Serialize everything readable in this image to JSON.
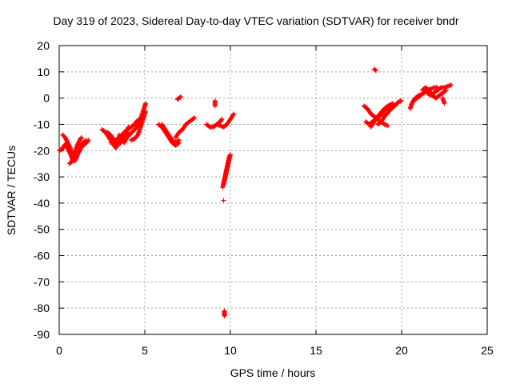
{
  "chart_data": {
    "type": "scatter",
    "title": "Day 319 of 2023, Sidereal Day-to-day VTEC variation (SDTVAR) for receiver bndr",
    "xlabel": "GPS time / hours",
    "ylabel": "SDTVAR / TECUs",
    "xlim": [
      0,
      25
    ],
    "ylim": [
      -90,
      20
    ],
    "xticks": [
      0,
      5,
      10,
      15,
      20,
      25
    ],
    "yticks": [
      20,
      10,
      0,
      -10,
      -20,
      -30,
      -40,
      -50,
      -60,
      -70,
      -80,
      -90
    ],
    "grid": true,
    "marker": "+",
    "marker_color": "#ff0000",
    "segments": [
      [
        [
          0.0,
          -20
        ],
        [
          0.15,
          -19.5
        ],
        [
          0.3,
          -18
        ],
        [
          0.45,
          -17
        ]
      ],
      [
        [
          0.2,
          -14
        ],
        [
          0.35,
          -15
        ],
        [
          0.5,
          -17
        ],
        [
          0.65,
          -19
        ],
        [
          0.8,
          -22
        ],
        [
          0.9,
          -24
        ],
        [
          1.0,
          -23
        ],
        [
          1.1,
          -21
        ],
        [
          1.2,
          -20
        ],
        [
          1.3,
          -18
        ],
        [
          1.4,
          -17
        ],
        [
          1.55,
          -16
        ]
      ],
      [
        [
          0.4,
          -18
        ],
        [
          0.55,
          -20
        ],
        [
          0.7,
          -22
        ],
        [
          0.8,
          -24
        ],
        [
          0.95,
          -22
        ],
        [
          1.1,
          -21
        ],
        [
          1.25,
          -19
        ],
        [
          1.4,
          -18
        ],
        [
          1.6,
          -17
        ],
        [
          1.7,
          -16
        ]
      ],
      [
        [
          0.6,
          -25
        ],
        [
          0.75,
          -24
        ],
        [
          0.9,
          -21
        ],
        [
          1.05,
          -18
        ],
        [
          1.2,
          -16
        ],
        [
          1.3,
          -15
        ]
      ],
      [
        [
          2.5,
          -12
        ],
        [
          2.7,
          -13
        ],
        [
          2.9,
          -15
        ],
        [
          3.1,
          -17
        ],
        [
          3.3,
          -19
        ],
        [
          3.5,
          -17
        ],
        [
          3.7,
          -15
        ],
        [
          3.9,
          -13
        ],
        [
          4.05,
          -11
        ]
      ],
      [
        [
          2.8,
          -13
        ],
        [
          3.0,
          -14
        ],
        [
          3.2,
          -16
        ],
        [
          3.4,
          -18
        ],
        [
          3.6,
          -17
        ],
        [
          3.8,
          -15
        ],
        [
          4.0,
          -13
        ]
      ],
      [
        [
          3.0,
          -17
        ],
        [
          3.2,
          -16.5
        ],
        [
          3.4,
          -15.5
        ],
        [
          3.6,
          -14.5
        ],
        [
          3.8,
          -13
        ],
        [
          4.0,
          -12
        ],
        [
          4.2,
          -11
        ],
        [
          4.4,
          -10
        ],
        [
          4.5,
          -9
        ],
        [
          4.7,
          -8
        ]
      ],
      [
        [
          3.5,
          -14
        ],
        [
          3.65,
          -16
        ],
        [
          3.8,
          -17
        ],
        [
          3.95,
          -15
        ],
        [
          4.1,
          -14
        ],
        [
          4.25,
          -13
        ],
        [
          4.4,
          -12
        ],
        [
          4.55,
          -11
        ],
        [
          4.7,
          -9
        ],
        [
          4.85,
          -6
        ],
        [
          5.0,
          -3
        ],
        [
          5.05,
          -2
        ]
      ],
      [
        [
          4.2,
          -16
        ],
        [
          4.4,
          -15.5
        ],
        [
          4.6,
          -14
        ],
        [
          4.75,
          -11
        ],
        [
          4.85,
          -9
        ],
        [
          4.95,
          -7
        ],
        [
          5.05,
          -5
        ]
      ],
      [
        [
          5.8,
          -10
        ],
        [
          6.0,
          -11
        ],
        [
          6.2,
          -13
        ],
        [
          6.4,
          -15
        ],
        [
          6.6,
          -17
        ],
        [
          6.8,
          -18
        ],
        [
          7.0,
          -17
        ]
      ],
      [
        [
          6.0,
          -10
        ],
        [
          6.2,
          -12
        ],
        [
          6.4,
          -14
        ],
        [
          6.6,
          -16
        ],
        [
          6.8,
          -17
        ],
        [
          7.0,
          -16
        ]
      ],
      [
        [
          6.8,
          -15
        ],
        [
          7.0,
          -13
        ],
        [
          7.2,
          -12
        ],
        [
          7.4,
          -10
        ],
        [
          7.6,
          -9
        ],
        [
          7.8,
          -8
        ],
        [
          7.9,
          -7.5
        ]
      ],
      [
        [
          6.9,
          -0.5
        ],
        [
          7.0,
          0
        ],
        [
          7.1,
          0.5
        ]
      ],
      [
        [
          8.6,
          -10
        ],
        [
          8.8,
          -11
        ],
        [
          9.0,
          -11
        ],
        [
          9.2,
          -10
        ],
        [
          9.4,
          -9
        ],
        [
          9.5,
          -8
        ]
      ],
      [
        [
          9.1,
          -1
        ],
        [
          9.1,
          -3
        ]
      ],
      [
        [
          9.2,
          -10
        ],
        [
          9.4,
          -10.5
        ],
        [
          9.6,
          -11
        ],
        [
          9.8,
          -10
        ],
        [
          10.0,
          -8
        ],
        [
          10.2,
          -6
        ]
      ],
      [
        [
          9.55,
          -34
        ],
        [
          9.65,
          -31
        ],
        [
          9.75,
          -28
        ],
        [
          9.85,
          -25
        ],
        [
          9.95,
          -22
        ]
      ],
      [
        [
          9.6,
          -33
        ],
        [
          9.7,
          -30
        ],
        [
          9.8,
          -27
        ],
        [
          9.9,
          -24
        ],
        [
          10.0,
          -21.5
        ]
      ],
      [
        [
          9.6,
          -39
        ]
      ],
      [
        [
          9.65,
          -81
        ],
        [
          9.65,
          -82
        ],
        [
          9.65,
          -83
        ]
      ],
      [
        [
          17.8,
          -3
        ],
        [
          18.0,
          -4
        ],
        [
          18.2,
          -6
        ],
        [
          18.4,
          -7
        ],
        [
          18.6,
          -8
        ],
        [
          18.8,
          -9
        ],
        [
          19.0,
          -10
        ],
        [
          19.2,
          -10.5
        ]
      ],
      [
        [
          17.9,
          -9
        ],
        [
          18.1,
          -10
        ],
        [
          18.3,
          -9
        ],
        [
          18.5,
          -8
        ],
        [
          18.7,
          -7
        ],
        [
          18.9,
          -5.5
        ],
        [
          19.1,
          -4
        ],
        [
          19.3,
          -3
        ]
      ],
      [
        [
          18.2,
          -11
        ],
        [
          18.4,
          -9
        ],
        [
          18.6,
          -7
        ],
        [
          18.8,
          -5.5
        ],
        [
          19.0,
          -4
        ],
        [
          19.2,
          -3
        ],
        [
          19.5,
          -2
        ]
      ],
      [
        [
          18.6,
          -10
        ],
        [
          18.8,
          -9
        ],
        [
          19.0,
          -7
        ],
        [
          19.2,
          -5.5
        ],
        [
          19.4,
          -4
        ],
        [
          19.6,
          -3
        ],
        [
          19.8,
          -1.5
        ],
        [
          20.0,
          -1
        ]
      ],
      [
        [
          18.4,
          11
        ],
        [
          18.5,
          10.5
        ]
      ],
      [
        [
          20.5,
          -4
        ],
        [
          20.6,
          -2
        ],
        [
          20.7,
          -1
        ],
        [
          20.8,
          0
        ],
        [
          21.0,
          1
        ],
        [
          21.2,
          1.5
        ]
      ],
      [
        [
          20.7,
          -1
        ],
        [
          20.9,
          0
        ],
        [
          21.1,
          1
        ],
        [
          21.3,
          2
        ],
        [
          21.5,
          3
        ],
        [
          21.7,
          3.5
        ],
        [
          21.9,
          4
        ],
        [
          22.1,
          4
        ]
      ],
      [
        [
          21.2,
          3
        ],
        [
          21.4,
          4
        ],
        [
          21.6,
          3
        ],
        [
          21.8,
          1
        ],
        [
          22.0,
          0
        ],
        [
          22.2,
          1
        ],
        [
          22.4,
          2
        ],
        [
          22.6,
          3
        ]
      ],
      [
        [
          21.5,
          2
        ],
        [
          21.7,
          1
        ],
        [
          21.9,
          2
        ],
        [
          22.1,
          3
        ],
        [
          22.3,
          4
        ],
        [
          22.5,
          4
        ],
        [
          22.7,
          4.5
        ],
        [
          22.9,
          5
        ]
      ],
      [
        [
          22.4,
          0
        ],
        [
          22.5,
          -2
        ]
      ]
    ]
  }
}
